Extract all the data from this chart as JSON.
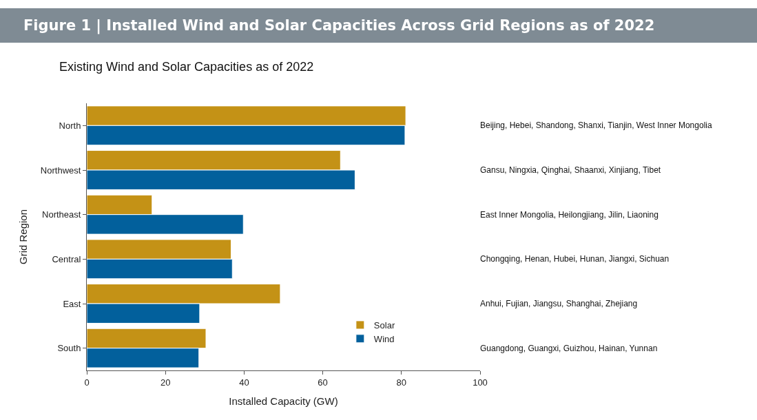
{
  "chart_data": {
    "type": "bar",
    "orientation": "horizontal",
    "title": "Figure 1 | Installed Wind and Solar Capacities Across Grid Regions as of 2022",
    "subtitle": "Existing Wind and Solar Capacities as of 2022",
    "xlabel": "Installed Capacity (GW)",
    "ylabel": "Grid Region",
    "categories": [
      "North",
      "Northwest",
      "Northeast",
      "Central",
      "East",
      "South"
    ],
    "series": [
      {
        "name": "Solar",
        "color": "#c49216",
        "values": [
          81.1,
          64.5,
          16.6,
          36.7,
          49.2,
          30.3
        ]
      },
      {
        "name": "Wind",
        "color": "#02609c",
        "values": [
          80.9,
          68.2,
          39.8,
          37.0,
          28.7,
          28.5
        ]
      }
    ],
    "xlim": [
      0,
      100
    ],
    "xticks": [
      0,
      20,
      40,
      60,
      80,
      100
    ],
    "annotations": [
      "Beijing, Hebei, Shandong, Shanxi, Tianjin, West Inner Mongolia",
      "Gansu, Ningxia, Qinghai, Shaanxi, Xinjiang, Tibet",
      "East Inner Mongolia, Heilongjiang, Jilin, Liaoning",
      "Chongqing, Henan, Hubei, Hunan, Jiangxi, Sichuan",
      "Anhui, Fujian, Jiangsu, Shanghai, Zhejiang",
      "Guangdong, Guangxi, Guizhou, Hainan, Yunnan"
    ],
    "legend": "bottom right"
  }
}
